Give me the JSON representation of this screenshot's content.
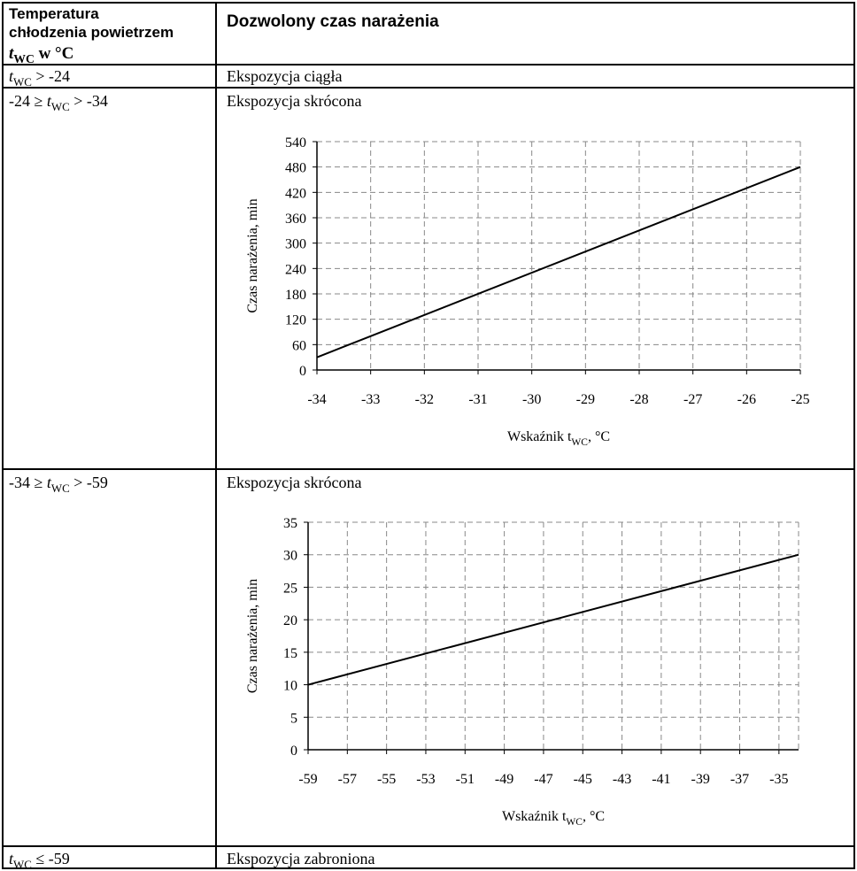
{
  "header": {
    "left": [
      [
        {
          "text": "Temperatura"
        }
      ],
      [
        {
          "text": "chłodzenia powietrzem"
        }
      ],
      [
        {
          "text": "t",
          "style": "italic"
        },
        {
          "text": "WC",
          "style": "sub"
        },
        {
          "text": " w °C"
        }
      ]
    ],
    "right": "Dozwolony czas narażenia"
  },
  "table": {
    "rows": [
      {
        "condition": [
          {
            "text": "t",
            "style": "italic"
          },
          {
            "text": "WC",
            "style": "sub"
          },
          {
            "text": " > -24"
          }
        ],
        "permission": "Ekspozycja ciągła"
      },
      {
        "condition": [
          {
            "text": "-24 ≥ "
          },
          {
            "text": "t",
            "style": "italic"
          },
          {
            "text": "WC",
            "style": "sub"
          },
          {
            "text": " > -34"
          }
        ],
        "permission": "Ekspozycja skrócona"
      },
      {
        "condition": [
          {
            "text": "-34 ≥ "
          },
          {
            "text": "t",
            "style": "italic"
          },
          {
            "text": "WC",
            "style": "sub"
          },
          {
            "text": " > -59"
          }
        ],
        "permission": "Ekspozycja skrócona"
      },
      {
        "condition": [
          {
            "text": "t",
            "style": "italic"
          },
          {
            "text": "WC",
            "style": "sub"
          },
          {
            "text": " ≤ -59"
          }
        ],
        "permission": "Ekspozycja zabroniona"
      }
    ]
  },
  "chart_data": [
    {
      "type": "line",
      "x": [
        -34,
        -25
      ],
      "values": [
        30,
        480
      ],
      "color": "#000000",
      "xlim": [
        -34,
        -25
      ],
      "xticks": [
        -34,
        -33,
        -32,
        -31,
        -30,
        -29,
        -28,
        -27,
        -26,
        -25
      ],
      "ylim": [
        0,
        540
      ],
      "yticks": [
        0,
        60,
        120,
        180,
        240,
        300,
        360,
        420,
        480,
        540
      ],
      "grid": true,
      "y_label": "Czas narażenia, min",
      "x_label": [
        {
          "text": "Wskaźnik t"
        },
        {
          "text": "WC",
          "style": "sub"
        },
        {
          "text": ", °C"
        }
      ]
    },
    {
      "type": "line",
      "x": [
        -59,
        -34
      ],
      "values": [
        10,
        30
      ],
      "color": "#000000",
      "xlim": [
        -59,
        -34
      ],
      "xticks": [
        -59,
        -57,
        -55,
        -53,
        -51,
        -49,
        -47,
        -45,
        -43,
        -41,
        -39,
        -37,
        -35
      ],
      "ylim": [
        0,
        35
      ],
      "yticks": [
        0,
        5,
        10,
        15,
        20,
        25,
        30,
        35
      ],
      "grid": true,
      "y_label": "Czas narażenia, min",
      "x_label": [
        {
          "text": "Wskaźnik t"
        },
        {
          "text": "WC",
          "style": "sub"
        },
        {
          "text": ", °C"
        }
      ]
    }
  ]
}
